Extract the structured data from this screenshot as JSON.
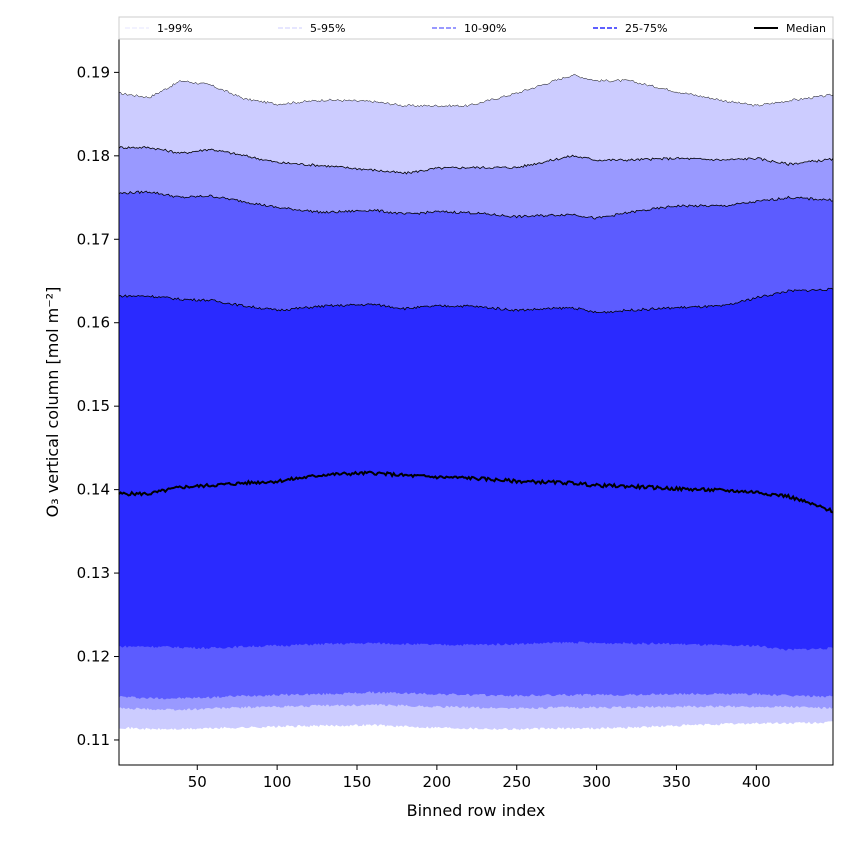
{
  "chart_data": {
    "type": "area",
    "xlabel": "Binned row index",
    "ylabel": "O₃ vertical column [mol m⁻²]",
    "xlim": [
      1,
      448
    ],
    "ylim": [
      0.107,
      0.194
    ],
    "x_ticks": [
      "50",
      "100",
      "150",
      "200",
      "250",
      "300",
      "350",
      "400"
    ],
    "y_ticks": [
      "0.11",
      "0.12",
      "0.13",
      "0.14",
      "0.15",
      "0.16",
      "0.17",
      "0.18",
      "0.19"
    ],
    "legend_position": "top",
    "grid": false,
    "x": [
      1,
      20,
      40,
      58,
      80,
      100,
      130,
      160,
      180,
      200,
      220,
      250,
      285,
      300,
      320,
      350,
      380,
      400,
      420,
      448
    ],
    "bands": [
      {
        "name": "1-99%",
        "color": "#ccccff",
        "edge": "#000000",
        "upper": [
          0.1875,
          0.187,
          0.189,
          0.1885,
          0.1868,
          0.1862,
          0.1867,
          0.1865,
          0.186,
          0.186,
          0.186,
          0.1875,
          0.1897,
          0.189,
          0.189,
          0.1877,
          0.1866,
          0.186,
          0.1866,
          0.1873
        ],
        "lower": [
          0.1115,
          0.1113,
          0.1113,
          0.1114,
          0.1115,
          0.1116,
          0.1117,
          0.1118,
          0.1116,
          0.1115,
          0.1114,
          0.1113,
          0.1114,
          0.1114,
          0.1115,
          0.1117,
          0.1119,
          0.112,
          0.112,
          0.1121
        ]
      },
      {
        "name": "5-95%",
        "color": "#9999ff",
        "edge": "#000000",
        "upper": [
          0.181,
          0.181,
          0.1803,
          0.1808,
          0.18,
          0.1792,
          0.1788,
          0.1783,
          0.1779,
          0.1785,
          0.1786,
          0.1786,
          0.18,
          0.1795,
          0.1795,
          0.1797,
          0.1795,
          0.1797,
          0.179,
          0.1796
        ]
      },
      {
        "name": "10-90%",
        "color": "#5c5cff",
        "edge": "#000000",
        "upper": [
          0.1755,
          0.1757,
          0.175,
          0.1752,
          0.1745,
          0.1738,
          0.1732,
          0.1735,
          0.173,
          0.1733,
          0.1732,
          0.1727,
          0.173,
          0.1725,
          0.1732,
          0.174,
          0.174,
          0.1745,
          0.175,
          0.1747
        ]
      },
      {
        "name": "25-75%",
        "color": "#2a2aff",
        "edge": "#000000",
        "upper": [
          0.1632,
          0.1632,
          0.1628,
          0.1627,
          0.162,
          0.1615,
          0.162,
          0.1622,
          0.1617,
          0.162,
          0.162,
          0.1615,
          0.1618,
          0.1612,
          0.1615,
          0.1618,
          0.162,
          0.163,
          0.1638,
          0.164
        ]
      }
    ],
    "lower_bounds": {
      "5-95%": [
        0.1138,
        0.1137,
        0.1136,
        0.1138,
        0.1139,
        0.114,
        0.1141,
        0.1142,
        0.1141,
        0.114,
        0.1139,
        0.1138,
        0.1139,
        0.1139,
        0.1139,
        0.114,
        0.114,
        0.114,
        0.114,
        0.1138
      ],
      "10-90%": [
        0.1152,
        0.115,
        0.115,
        0.1151,
        0.1153,
        0.1154,
        0.1155,
        0.1157,
        0.1156,
        0.1155,
        0.1154,
        0.1153,
        0.1154,
        0.1154,
        0.1154,
        0.1155,
        0.1155,
        0.1155,
        0.1153,
        0.1152
      ],
      "25-75%": [
        0.1212,
        0.1212,
        0.1211,
        0.121,
        0.1212,
        0.1213,
        0.1215,
        0.1216,
        0.1215,
        0.1214,
        0.1214,
        0.1215,
        0.1217,
        0.1216,
        0.1216,
        0.1215,
        0.1213,
        0.1213,
        0.1208,
        0.121
      ]
    },
    "median": {
      "name": "Median",
      "color": "#000000",
      "values": [
        0.1395,
        0.1395,
        0.1403,
        0.1405,
        0.1408,
        0.141,
        0.1418,
        0.142,
        0.1417,
        0.1415,
        0.1414,
        0.141,
        0.1408,
        0.1405,
        0.1404,
        0.1401,
        0.1399,
        0.1397,
        0.1392,
        0.1374
      ]
    },
    "legend": [
      "1-99%",
      "5-95%",
      "10-90%",
      "25-75%",
      "Median"
    ]
  }
}
